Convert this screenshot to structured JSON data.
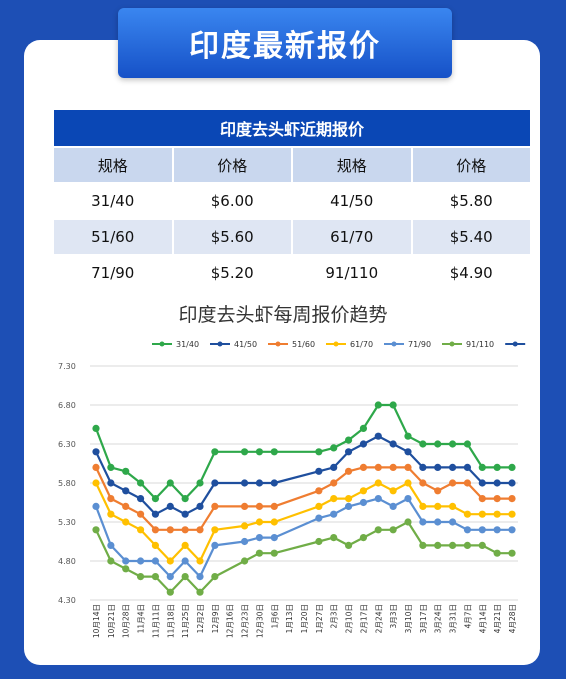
{
  "banner": {
    "title": "印度最新报价"
  },
  "price_table": {
    "title": "印度去头虾近期报价",
    "headers": [
      "规格",
      "价格",
      "规格",
      "价格"
    ],
    "rows": [
      [
        "31/40",
        "$6.00",
        "41/50",
        "$5.80"
      ],
      [
        "51/60",
        "$5.60",
        "61/70",
        "$5.40"
      ],
      [
        "71/90",
        "$5.20",
        "91/110",
        "$4.90"
      ]
    ]
  },
  "chart_data": {
    "type": "line",
    "title": "印度去头虾每周报价趋势",
    "legend_position": "top",
    "grid": true,
    "yticks": [
      "7.30",
      "6.80",
      "6.30",
      "5.80",
      "5.30",
      "4.80",
      "4.30"
    ],
    "ylim": [
      4.3,
      7.3
    ],
    "categories": [
      "10月14日",
      "10月21日",
      "10月28日",
      "11月4日",
      "11月11日",
      "11月18日",
      "11月25日",
      "12月2日",
      "12月9日",
      "12月16日",
      "12月23日",
      "12月30日",
      "1月6日",
      "1月13日",
      "1月20日",
      "1月27日",
      "2月3日",
      "2月10日",
      "2月17日",
      "2月24日",
      "3月3日",
      "3月10日",
      "3月17日",
      "3月24日",
      "3月31日",
      "4月7日",
      "4月14日",
      "4月21日",
      "4月28日"
    ],
    "series": [
      {
        "name": "31/40",
        "color": "#2ea84a",
        "x": [
          0,
          1,
          2,
          3,
          4,
          5,
          6,
          7,
          8,
          10,
          11,
          12,
          15,
          16,
          17,
          18,
          19,
          20,
          21,
          22,
          23,
          24,
          25,
          26,
          27,
          28
        ],
        "values": [
          6.5,
          6.0,
          5.95,
          5.8,
          5.6,
          5.8,
          5.6,
          5.8,
          6.2,
          6.2,
          6.2,
          6.2,
          6.2,
          6.25,
          6.35,
          6.5,
          6.8,
          6.8,
          6.4,
          6.3,
          6.3,
          6.3,
          6.3,
          6.0,
          6.0,
          6.0
        ]
      },
      {
        "name": "41/50",
        "color": "#1f4f9e",
        "x": [
          0,
          1,
          2,
          3,
          4,
          5,
          6,
          7,
          8,
          10,
          11,
          12,
          15,
          16,
          17,
          18,
          19,
          20,
          21,
          22,
          23,
          24,
          25,
          26,
          27,
          28
        ],
        "values": [
          6.2,
          5.8,
          5.7,
          5.6,
          5.4,
          5.5,
          5.4,
          5.5,
          5.8,
          5.8,
          5.8,
          5.8,
          5.95,
          6.0,
          6.2,
          6.3,
          6.4,
          6.3,
          6.2,
          6.0,
          6.0,
          6.0,
          6.0,
          5.8,
          5.8,
          5.8
        ]
      },
      {
        "name": "51/60",
        "color": "#ef7d31",
        "x": [
          0,
          1,
          2,
          3,
          4,
          5,
          6,
          7,
          8,
          10,
          11,
          12,
          15,
          16,
          17,
          18,
          19,
          20,
          21,
          22,
          23,
          24,
          25,
          26,
          27,
          28
        ],
        "values": [
          6.0,
          5.6,
          5.5,
          5.4,
          5.2,
          5.2,
          5.2,
          5.2,
          5.5,
          5.5,
          5.5,
          5.5,
          5.7,
          5.8,
          5.95,
          6.0,
          6.0,
          6.0,
          6.0,
          5.8,
          5.7,
          5.8,
          5.8,
          5.6,
          5.6,
          5.6
        ]
      },
      {
        "name": "61/70",
        "color": "#ffc000",
        "x": [
          0,
          1,
          2,
          3,
          4,
          5,
          6,
          7,
          8,
          10,
          11,
          12,
          15,
          16,
          17,
          18,
          19,
          20,
          21,
          22,
          23,
          24,
          25,
          26,
          27,
          28
        ],
        "values": [
          5.8,
          5.4,
          5.3,
          5.2,
          5.0,
          4.8,
          5.0,
          4.8,
          5.2,
          5.25,
          5.3,
          5.3,
          5.5,
          5.6,
          5.6,
          5.7,
          5.8,
          5.7,
          5.8,
          5.5,
          5.5,
          5.5,
          5.4,
          5.4,
          5.4,
          5.4
        ]
      },
      {
        "name": "71/90",
        "color": "#5b8fd2",
        "x": [
          0,
          1,
          2,
          3,
          4,
          5,
          6,
          7,
          8,
          10,
          11,
          12,
          15,
          16,
          17,
          18,
          19,
          20,
          21,
          22,
          23,
          24,
          25,
          26,
          27,
          28
        ],
        "values": [
          5.5,
          5.0,
          4.8,
          4.8,
          4.8,
          4.6,
          4.8,
          4.6,
          5.0,
          5.05,
          5.1,
          5.1,
          5.35,
          5.4,
          5.5,
          5.55,
          5.6,
          5.5,
          5.6,
          5.3,
          5.3,
          5.3,
          5.2,
          5.2,
          5.2,
          5.2
        ]
      },
      {
        "name": "91/110",
        "color": "#70ad47",
        "x": [
          0,
          1,
          2,
          3,
          4,
          5,
          6,
          7,
          8,
          10,
          11,
          12,
          15,
          16,
          17,
          18,
          19,
          20,
          21,
          22,
          23,
          24,
          25,
          26,
          27,
          28
        ],
        "values": [
          5.2,
          4.8,
          4.7,
          4.6,
          4.6,
          4.4,
          4.6,
          4.4,
          4.6,
          4.8,
          4.9,
          4.9,
          5.05,
          5.1,
          5.0,
          5.1,
          5.2,
          5.2,
          5.3,
          5.0,
          5.0,
          5.0,
          5.0,
          5.0,
          4.9,
          4.9
        ]
      },
      {
        "name": "",
        "color": "#1f4f9e",
        "x": [],
        "values": []
      }
    ]
  }
}
